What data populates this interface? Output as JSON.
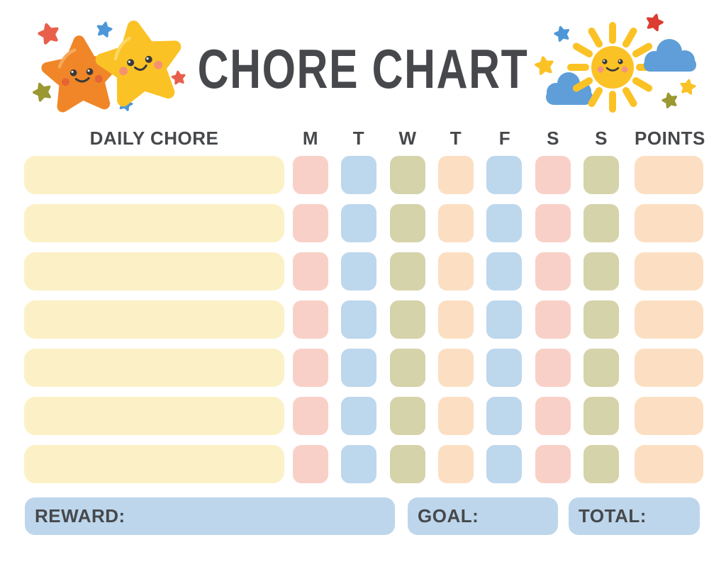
{
  "title": "CHORE CHART",
  "header": {
    "daily_chore": "DAILY CHORE",
    "days": [
      "M",
      "T",
      "W",
      "T",
      "F",
      "S",
      "S"
    ],
    "points": "POINTS"
  },
  "grid": {
    "row_count": 7,
    "chore_cell_color": "#FCF0C6",
    "day_cell_colors": [
      "#F9D0C8",
      "#BDD7ED",
      "#D5D3A9",
      "#FCDFC2",
      "#BDD7ED",
      "#F9D0C8",
      "#D5D3A9"
    ],
    "points_cell_color": "#FCDFC2"
  },
  "footer": {
    "reward_label": "REWARD:",
    "goal_label": "GOAL:",
    "total_label": "TOTAL:",
    "box_color": "#BDD6EC"
  },
  "colors": {
    "text": "#46484B",
    "star_orange": "#F08628",
    "star_orange_highlight": "#F6A95C",
    "star_yellow": "#FBC226",
    "star_yellow_highlight": "#FDD863",
    "sun_yellow": "#FBC226",
    "cloud_blue": "#5F9ED8",
    "mini_star_coral": "#E8604C",
    "mini_star_blue": "#4D97D8",
    "mini_star_olive": "#9B9832",
    "mini_star_red": "#DD3C30",
    "mini_star_yellow": "#FBC226",
    "cheek_pink": "#F2908C",
    "cheek_orange": "#E25B38",
    "cheek_salmon": "#F28A7E",
    "face_dark": "#3A3A3A"
  },
  "decorations": {
    "left": "two-smiling-stars",
    "right": "smiling-sun-with-clouds"
  }
}
